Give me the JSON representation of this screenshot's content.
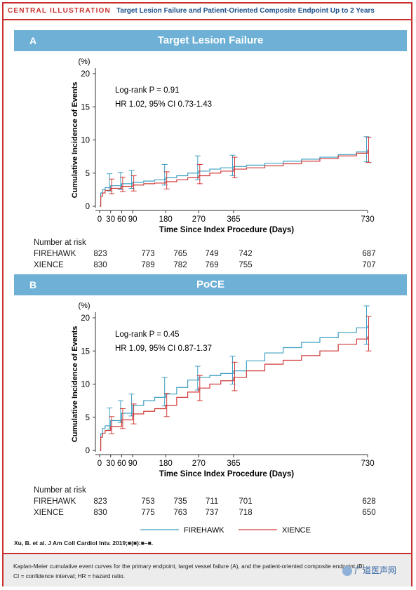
{
  "header": {
    "brand": "CENTRAL ILLUSTRATION",
    "title": "Target Lesion Failure and Patient-Oriented Composite Endpoint Up to 2 Years"
  },
  "colors": {
    "firehawk": "#3fa0c4",
    "xience": "#d03a38",
    "bar": "#6fb1d6",
    "frame": "#c8302d",
    "title": "#1b4f8a"
  },
  "panels": [
    {
      "letter": "A",
      "title": "Target Lesion Failure",
      "stat1": "Log-rank P = 0.91",
      "stat2": "HR 1.02, 95% CI 0.73-1.43",
      "risk_header": "Number at risk",
      "rows": [
        {
          "label": "FIREHAWK",
          "values": [
            "823",
            "773",
            "765",
            "749",
            "742",
            "687"
          ]
        },
        {
          "label": "XIENCE",
          "values": [
            "830",
            "789",
            "782",
            "769",
            "755",
            "707"
          ]
        }
      ]
    },
    {
      "letter": "B",
      "title": "PoCE",
      "stat1": "Log-rank P = 0.45",
      "stat2": "HR 1.09, 95% CI 0.87-1.37",
      "risk_header": "Number at risk",
      "rows": [
        {
          "label": "FIREHAWK",
          "values": [
            "823",
            "753",
            "735",
            "711",
            "701",
            "628"
          ]
        },
        {
          "label": "XIENCE",
          "values": [
            "830",
            "775",
            "763",
            "737",
            "718",
            "650"
          ]
        }
      ]
    }
  ],
  "legend": {
    "firehawk": "FIREHAWK",
    "xience": "XIENCE"
  },
  "citation": "Xu, B. et al. J Am Coll Cardiol Intv. 2019;■(■):■–■.",
  "footer": {
    "line1": "Kaplan-Meier cumulative event curves for the primary endpoint, target vessel failure (A), and the patient-oriented composite endpoint (B).",
    "line2": "CI = confidence interval; HR = hazard ratio."
  },
  "watermark": "广道医声网",
  "chart_data": [
    {
      "type": "line",
      "title": "Target Lesion Failure",
      "xlabel": "Time Since Index Procedure (Days)",
      "ylabel": "Cumulative Incidence of Events",
      "yunit": "(%)",
      "xticks": [
        0,
        30,
        60,
        90,
        180,
        270,
        365,
        730
      ],
      "yticks": [
        0,
        5,
        10,
        15,
        20
      ],
      "xlim": [
        0,
        730
      ],
      "ylim": [
        0,
        21
      ],
      "series": [
        {
          "name": "FIREHAWK",
          "color": "#3fa0c4",
          "x": [
            0,
            3,
            8,
            15,
            30,
            60,
            90,
            120,
            150,
            180,
            210,
            240,
            270,
            300,
            330,
            365,
            400,
            450,
            500,
            550,
            600,
            650,
            700,
            730
          ],
          "y": [
            0,
            2.0,
            2.5,
            2.8,
            3.1,
            3.4,
            3.6,
            3.8,
            4.0,
            4.3,
            4.6,
            5.0,
            5.3,
            5.6,
            5.8,
            6.0,
            6.2,
            6.5,
            6.8,
            7.1,
            7.4,
            7.8,
            8.2,
            8.5
          ],
          "ci": [
            [
              30,
              3.1,
              2.3,
              4.9
            ],
            [
              60,
              3.4,
              2.5,
              5.1
            ],
            [
              90,
              3.6,
              2.7,
              5.4
            ],
            [
              180,
              4.3,
              3.2,
              6.3
            ],
            [
              270,
              5.3,
              4.0,
              7.6
            ],
            [
              365,
              6.0,
              4.6,
              7.7
            ],
            [
              730,
              8.5,
              6.7,
              10.5
            ]
          ]
        },
        {
          "name": "XIENCE",
          "color": "#d03a38",
          "x": [
            0,
            3,
            8,
            15,
            30,
            60,
            90,
            120,
            150,
            180,
            210,
            240,
            270,
            300,
            330,
            365,
            400,
            450,
            500,
            550,
            600,
            650,
            700,
            730
          ],
          "y": [
            0,
            1.5,
            2.0,
            2.4,
            2.7,
            3.0,
            3.2,
            3.4,
            3.5,
            3.7,
            4.0,
            4.3,
            4.6,
            5.0,
            5.3,
            5.6,
            5.8,
            6.1,
            6.4,
            6.8,
            7.2,
            7.6,
            8.0,
            8.4
          ],
          "ci": [
            [
              30,
              2.7,
              1.9,
              4.1
            ],
            [
              60,
              3.0,
              2.2,
              4.4
            ],
            [
              90,
              3.2,
              2.3,
              4.6
            ],
            [
              180,
              3.7,
              2.6,
              5.2
            ],
            [
              270,
              4.6,
              3.4,
              6.3
            ],
            [
              365,
              5.6,
              4.3,
              7.4
            ],
            [
              730,
              8.4,
              6.6,
              10.4
            ]
          ]
        }
      ]
    },
    {
      "type": "line",
      "title": "PoCE",
      "xlabel": "Time Since Index Procedure (Days)",
      "ylabel": "Cumulative Incidence of Events",
      "yunit": "(%)",
      "xticks": [
        0,
        30,
        60,
        90,
        180,
        270,
        365,
        730
      ],
      "yticks": [
        0,
        5,
        10,
        15,
        20
      ],
      "xlim": [
        0,
        730
      ],
      "ylim": [
        0,
        21
      ],
      "series": [
        {
          "name": "FIREHAWK",
          "color": "#3fa0c4",
          "x": [
            0,
            3,
            8,
            15,
            30,
            60,
            90,
            120,
            150,
            180,
            210,
            240,
            270,
            300,
            330,
            365,
            400,
            450,
            500,
            550,
            600,
            650,
            700,
            730
          ],
          "y": [
            0,
            2.5,
            3.3,
            3.7,
            4.5,
            5.6,
            6.8,
            7.5,
            8.0,
            8.5,
            9.5,
            10.6,
            11.0,
            11.3,
            11.6,
            12.0,
            13.5,
            14.7,
            15.5,
            16.3,
            17.0,
            17.8,
            18.5,
            18.8
          ],
          "ci": [
            [
              30,
              4.5,
              3.2,
              6.4
            ],
            [
              60,
              5.6,
              4.2,
              7.5
            ],
            [
              90,
              6.8,
              5.2,
              8.5
            ],
            [
              180,
              8.5,
              6.7,
              11.0
            ],
            [
              270,
              11.0,
              9.1,
              12.7
            ],
            [
              365,
              12.0,
              10.0,
              14.2
            ],
            [
              730,
              18.8,
              16.0,
              21.8
            ]
          ]
        },
        {
          "name": "XIENCE",
          "color": "#d03a38",
          "x": [
            0,
            3,
            8,
            15,
            30,
            60,
            90,
            120,
            150,
            180,
            210,
            240,
            270,
            300,
            330,
            365,
            400,
            450,
            500,
            550,
            600,
            650,
            700,
            730
          ],
          "y": [
            0,
            2.0,
            2.6,
            3.0,
            3.6,
            4.6,
            5.5,
            5.9,
            6.3,
            6.8,
            8.0,
            8.8,
            9.4,
            10.0,
            10.5,
            11.0,
            12.0,
            13.0,
            13.6,
            14.3,
            15.0,
            16.0,
            16.8,
            17.2
          ],
          "ci": [
            [
              30,
              3.6,
              2.5,
              5.1
            ],
            [
              60,
              4.6,
              3.3,
              6.3
            ],
            [
              90,
              5.5,
              4.0,
              7.0
            ],
            [
              180,
              6.8,
              5.1,
              8.6
            ],
            [
              270,
              9.4,
              7.5,
              11.3
            ],
            [
              365,
              11.0,
              9.0,
              13.3
            ],
            [
              730,
              17.2,
              15.0,
              20.2
            ]
          ]
        }
      ]
    }
  ]
}
